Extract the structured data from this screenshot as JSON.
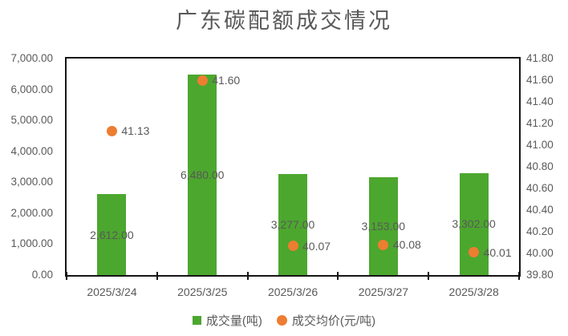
{
  "title": "广东碳配额成交情况",
  "colors": {
    "bar_green": "#4CA72E",
    "dot_orange": "#ED7D31",
    "axis_text": "#595959",
    "plot_border": "#151515"
  },
  "chart_data": {
    "type": "bar",
    "subtype": "bar-and-scatter-combo",
    "title": "广东碳配额成交情况",
    "categories": [
      "2025/3/24",
      "2025/3/25",
      "2025/3/26",
      "2025/3/27",
      "2025/3/28"
    ],
    "series": [
      {
        "name": "成交量(吨)",
        "type": "bar",
        "axis": "left",
        "color": "#4CA72E",
        "values": [
          2612,
          6480,
          3277,
          3153,
          3302
        ],
        "labels": [
          "2,612.00",
          "6,480.00",
          "3,277.00",
          "3,153.00",
          "3,302.00"
        ]
      },
      {
        "name": "成交均价(元/吨)",
        "type": "scatter",
        "axis": "right",
        "color": "#ED7D31",
        "values": [
          41.13,
          41.6,
          40.07,
          40.08,
          40.01
        ],
        "labels": [
          "41.13",
          "41.60",
          "40.07",
          "40.08",
          "40.01"
        ]
      }
    ],
    "axes": {
      "left": {
        "min": 0,
        "max": 7000,
        "step": 1000,
        "ticks": [
          "7,000.00",
          "6,000.00",
          "5,000.00",
          "4,000.00",
          "3,000.00",
          "2,000.00",
          "1,000.00",
          "0.00"
        ]
      },
      "right": {
        "min": 39.8,
        "max": 41.8,
        "step": 0.2,
        "ticks": [
          "41.80",
          "41.60",
          "41.40",
          "41.20",
          "41.00",
          "40.80",
          "40.60",
          "40.40",
          "40.20",
          "40.00",
          "39.80"
        ]
      }
    },
    "grid": false,
    "legend_position": "bottom"
  }
}
